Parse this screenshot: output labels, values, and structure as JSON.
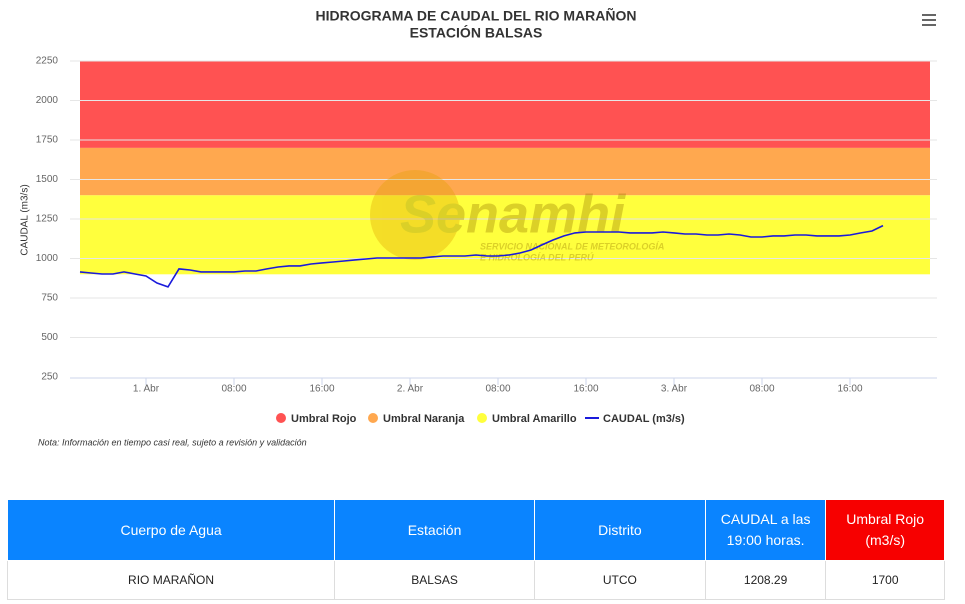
{
  "chart_data": {
    "type": "line",
    "title": "HIDROGRAMA DE CAUDAL DEL RIO MARAÑON",
    "subtitle": "ESTACIÓN BALSAS",
    "y_label": "CAUDAL (m3/s)",
    "note": "Nota: Información en tiempo casi real, sujeto a revisión y validación",
    "watermark": {
      "title": "Senamhi",
      "line1": "SERVICIO NACIONAL DE METEOROLOGÍA",
      "line2": "E HIDROLOGÍA DEL PERÚ"
    },
    "categories": [
      null,
      null,
      null,
      null,
      null,
      null,
      "1. Abr",
      null,
      null,
      null,
      null,
      null,
      null,
      null,
      "08:00",
      null,
      null,
      null,
      null,
      null,
      null,
      null,
      "16:00",
      null,
      null,
      null,
      null,
      null,
      null,
      null,
      "2. Abr",
      null,
      null,
      null,
      null,
      null,
      null,
      null,
      "08:00",
      null,
      null,
      null,
      null,
      null,
      null,
      null,
      "16:00",
      null,
      null,
      null,
      null,
      null,
      null,
      null,
      "3. Abr",
      null,
      null,
      null,
      null,
      null,
      null,
      null,
      "08:00",
      null,
      null,
      null,
      null,
      null,
      null,
      null,
      "16:00",
      null,
      null,
      null
    ],
    "series": [
      {
        "name": "CAUDAL (m3/s)",
        "color": "#1a1adb",
        "values": [
          915,
          908,
          902,
          902,
          915,
          902,
          889,
          845,
          820,
          934,
          927,
          915,
          915,
          915,
          915,
          921,
          921,
          934,
          946,
          953,
          953,
          965,
          972,
          978,
          984,
          991,
          997,
          1003,
          1003,
          1003,
          1003,
          1003,
          1010,
          1016,
          1016,
          1016,
          1022,
          1016,
          1016,
          1022,
          1035,
          1054,
          1086,
          1117,
          1143,
          1162,
          1168,
          1168,
          1168,
          1168,
          1162,
          1162,
          1162,
          1168,
          1162,
          1155,
          1155,
          1149,
          1149,
          1155,
          1149,
          1136,
          1136,
          1143,
          1143,
          1149,
          1149,
          1143,
          1143,
          1143,
          1149,
          1162,
          1174,
          1208
        ]
      }
    ],
    "bands": [
      {
        "name": "Umbral Rojo",
        "color": "#ff5252",
        "from": 1700,
        "to": 2250
      },
      {
        "name": "Umbral Naranja",
        "color": "#ffa84f",
        "from": 1400,
        "to": 1700
      },
      {
        "name": "Umbral Amarillo",
        "color": "#ffff3d",
        "from": 900,
        "to": 1400
      }
    ],
    "ylim": [
      250,
      2250
    ],
    "yticks": [
      250,
      500,
      750,
      1000,
      1250,
      1500,
      1750,
      2000,
      2250
    ],
    "grid": true
  },
  "table": {
    "headers": [
      "Cuerpo de Agua",
      "Estación",
      "Distrito",
      "CAUDAL a las 19:00 horas.",
      "Umbral Rojo (m3/s)"
    ],
    "rows": [
      [
        "RIO MARAÑON",
        "BALSAS",
        "UTCO",
        1208.29,
        1700
      ]
    ]
  }
}
